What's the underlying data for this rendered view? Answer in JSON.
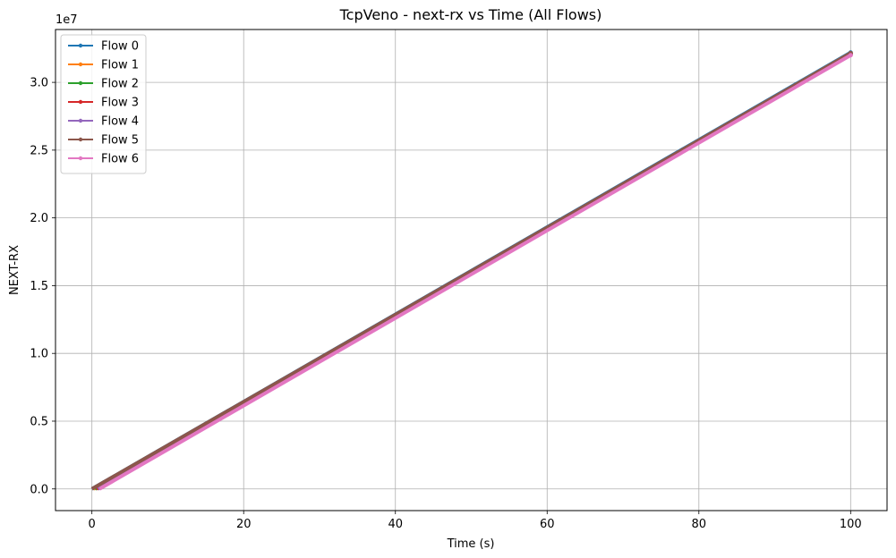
{
  "chart_data": {
    "type": "line",
    "title": "TcpVeno - next-rx vs Time (All Flows)",
    "xlabel": "Time (s)",
    "ylabel": "NEXT-RX",
    "y_offset_label": "1e7",
    "xlim": [
      -4.8,
      104.8
    ],
    "ylim": [
      -1600000,
      33900000
    ],
    "x_ticks": [
      0,
      20,
      40,
      60,
      80,
      100
    ],
    "x_tick_labels": [
      "0",
      "20",
      "40",
      "60",
      "80",
      "100"
    ],
    "y_ticks": [
      0,
      5000000,
      10000000,
      15000000,
      20000000,
      25000000,
      30000000
    ],
    "y_tick_labels": [
      "0.0",
      "0.5",
      "1.0",
      "1.5",
      "2.0",
      "2.5",
      "3.0"
    ],
    "grid": true,
    "legend_position": "top-left",
    "series": [
      {
        "name": "Flow 0",
        "color": "#1f77b4",
        "x": [
          0.0,
          100.0
        ],
        "y": [
          0,
          32200000
        ]
      },
      {
        "name": "Flow 1",
        "color": "#ff7f0e",
        "x": [
          0.2,
          100.0
        ],
        "y": [
          0,
          32150000
        ]
      },
      {
        "name": "Flow 2",
        "color": "#2ca02c",
        "x": [
          0.4,
          100.0
        ],
        "y": [
          0,
          32100000
        ]
      },
      {
        "name": "Flow 3",
        "color": "#d62728",
        "x": [
          0.6,
          100.0
        ],
        "y": [
          0,
          32100000
        ]
      },
      {
        "name": "Flow 4",
        "color": "#9467bd",
        "x": [
          0.8,
          100.0
        ],
        "y": [
          0,
          32050000
        ]
      },
      {
        "name": "Flow 5",
        "color": "#8c564b",
        "x": [
          0.0,
          100.0
        ],
        "y": [
          0,
          32150000
        ]
      },
      {
        "name": "Flow 6",
        "color": "#e377c2",
        "x": [
          1.0,
          100.0
        ],
        "y": [
          0,
          32000000
        ]
      }
    ]
  }
}
